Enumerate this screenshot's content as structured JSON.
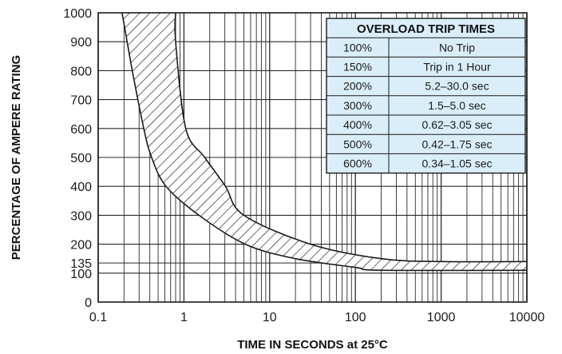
{
  "chart_data": {
    "type": "area",
    "xlabel": "TIME IN SECONDS at 25°C",
    "ylabel": "PERCENTAGE OF AMPERE RATING",
    "x_scale": "log",
    "xlim": [
      0.1,
      10000
    ],
    "ylim": [
      0,
      1000
    ],
    "x_ticks": [
      "0.1",
      "1",
      "10",
      "100",
      "1000",
      "10000"
    ],
    "y_ticks": [
      {
        "value": 0,
        "label": "0"
      },
      {
        "value": 100,
        "label": "100"
      },
      {
        "value": 135,
        "label": "135"
      },
      {
        "value": 200,
        "label": "200"
      },
      {
        "value": 300,
        "label": "300"
      },
      {
        "value": 400,
        "label": "400"
      },
      {
        "value": 500,
        "label": "500"
      },
      {
        "value": 600,
        "label": "600"
      },
      {
        "value": 700,
        "label": "700"
      },
      {
        "value": 800,
        "label": "800"
      },
      {
        "value": 900,
        "label": "900"
      },
      {
        "value": 1000,
        "label": "1000"
      }
    ],
    "grid": true,
    "band": {
      "fill": "hatched",
      "lower": [
        [
          0.19,
          1000
        ],
        [
          0.25,
          800
        ],
        [
          0.34,
          600
        ],
        [
          0.42,
          500
        ],
        [
          0.62,
          400
        ],
        [
          1.5,
          300
        ],
        [
          5.2,
          200
        ],
        [
          20,
          150
        ],
        [
          100,
          120
        ],
        [
          200,
          110
        ],
        [
          10000,
          110
        ]
      ],
      "upper": [
        [
          0.8,
          1000
        ],
        [
          0.8,
          900
        ],
        [
          1.05,
          600
        ],
        [
          1.75,
          500
        ],
        [
          3.05,
          400
        ],
        [
          5,
          300
        ],
        [
          30,
          200
        ],
        [
          200,
          150
        ],
        [
          1000,
          140
        ],
        [
          10000,
          140
        ]
      ]
    },
    "table": {
      "title": "OVERLOAD TRIP TIMES",
      "rows": [
        [
          "100%",
          "No Trip"
        ],
        [
          "150%",
          "Trip in 1 Hour"
        ],
        [
          "200%",
          "5.2–30.0 sec"
        ],
        [
          "300%",
          "1.5–5.0 sec"
        ],
        [
          "400%",
          "0.62–3.05 sec"
        ],
        [
          "500%",
          "0.42–1.75 sec"
        ],
        [
          "600%",
          "0.34–1.05 sec"
        ]
      ]
    },
    "colors": {
      "table_bg": "#d9eef8",
      "ink": "#1a1a1a",
      "grid": "#2a2a2a"
    }
  }
}
